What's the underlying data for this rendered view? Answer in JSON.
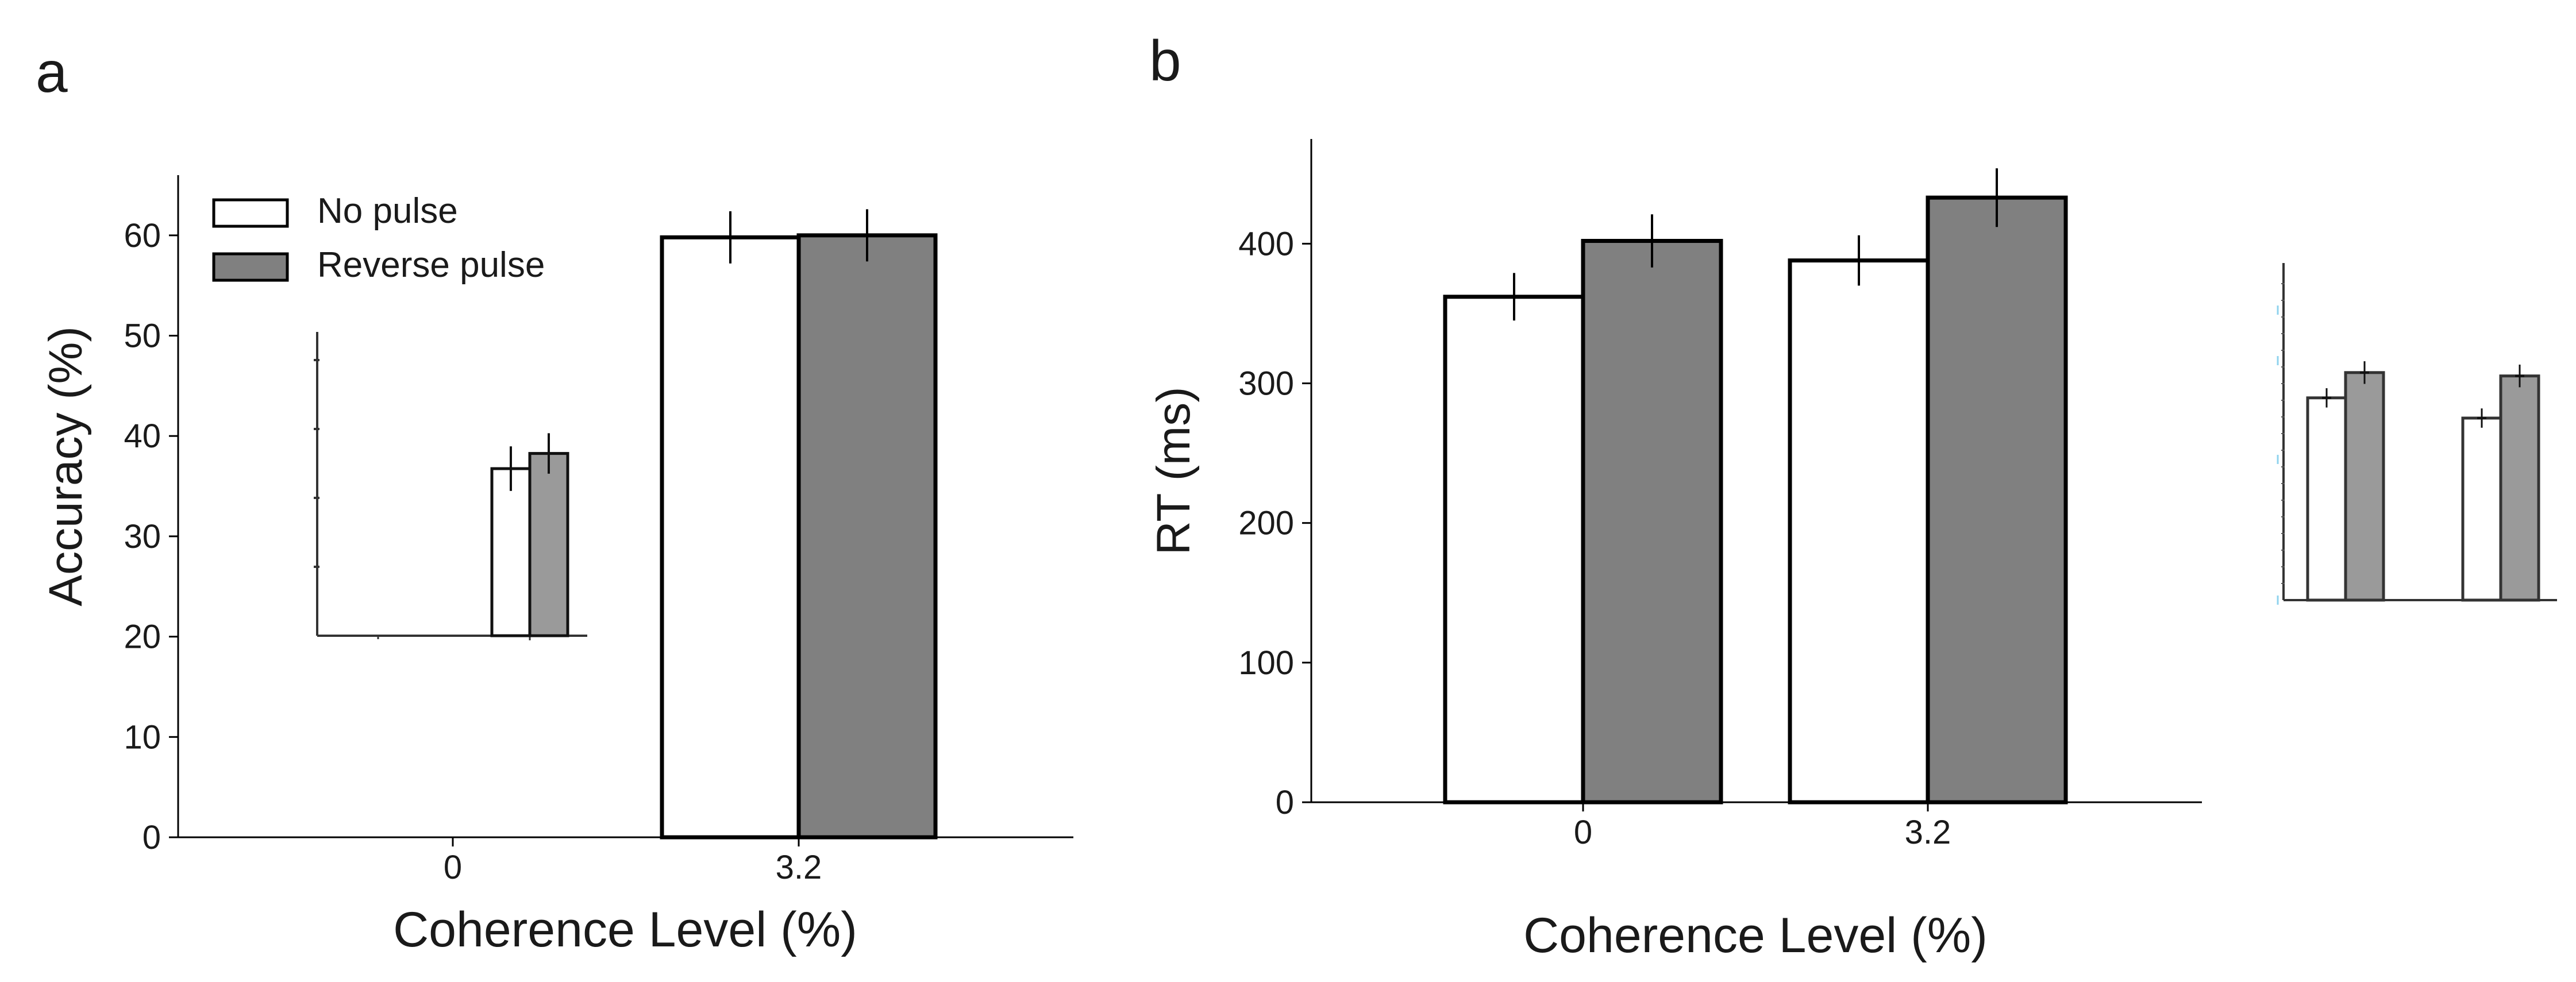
{
  "panels": [
    {
      "letter": "a"
    },
    {
      "letter": "b"
    }
  ],
  "legend": [
    {
      "label": "No pulse",
      "color": "#ffffff"
    },
    {
      "label": "Reverse pulse",
      "color": "#808080"
    }
  ],
  "colors": {
    "no_pulse": "#ffffff",
    "reverse_pulse": "#808080",
    "stroke": "#000000",
    "inset_reverse": "#9a9a9a"
  },
  "chart_data": [
    {
      "type": "bar",
      "panel": "a",
      "title": "",
      "xlabel": "Coherence Level (%)",
      "ylabel": "Accuracy (%)",
      "categories": [
        "0",
        "3.2"
      ],
      "ylim": [
        0,
        66
      ],
      "yticks": [
        0,
        10,
        20,
        30,
        40,
        50,
        60
      ],
      "series": [
        {
          "name": "No pulse",
          "values": [
            null,
            59.8
          ],
          "errors": [
            null,
            2.6
          ]
        },
        {
          "name": "Reverse pulse",
          "values": [
            null,
            60.0
          ],
          "errors": [
            null,
            2.6
          ]
        }
      ],
      "inset": {
        "ylim": [
          20,
          50
        ],
        "values": [
          36.5,
          38
        ],
        "errors": [
          2.2,
          2.0
        ]
      }
    },
    {
      "type": "bar",
      "panel": "b",
      "title": "",
      "xlabel": "Coherence Level (%)",
      "ylabel": "RT (ms)",
      "categories": [
        "0",
        "3.2"
      ],
      "ylim": [
        0,
        475
      ],
      "yticks": [
        0,
        100,
        200,
        300,
        400
      ],
      "series": [
        {
          "name": "No pulse",
          "values": [
            362,
            388
          ],
          "errors": [
            17,
            18
          ]
        },
        {
          "name": "Reverse pulse",
          "values": [
            402,
            433
          ],
          "errors": [
            19,
            21
          ]
        }
      ],
      "inset": {
        "ylim": [
          0,
          20
        ],
        "values": [
          [
            12,
            13.5
          ],
          [
            10.8,
            13.3
          ]
        ],
        "errors": [
          [
            0.3,
            0.4
          ],
          [
            0.3,
            0.4
          ]
        ]
      }
    }
  ]
}
